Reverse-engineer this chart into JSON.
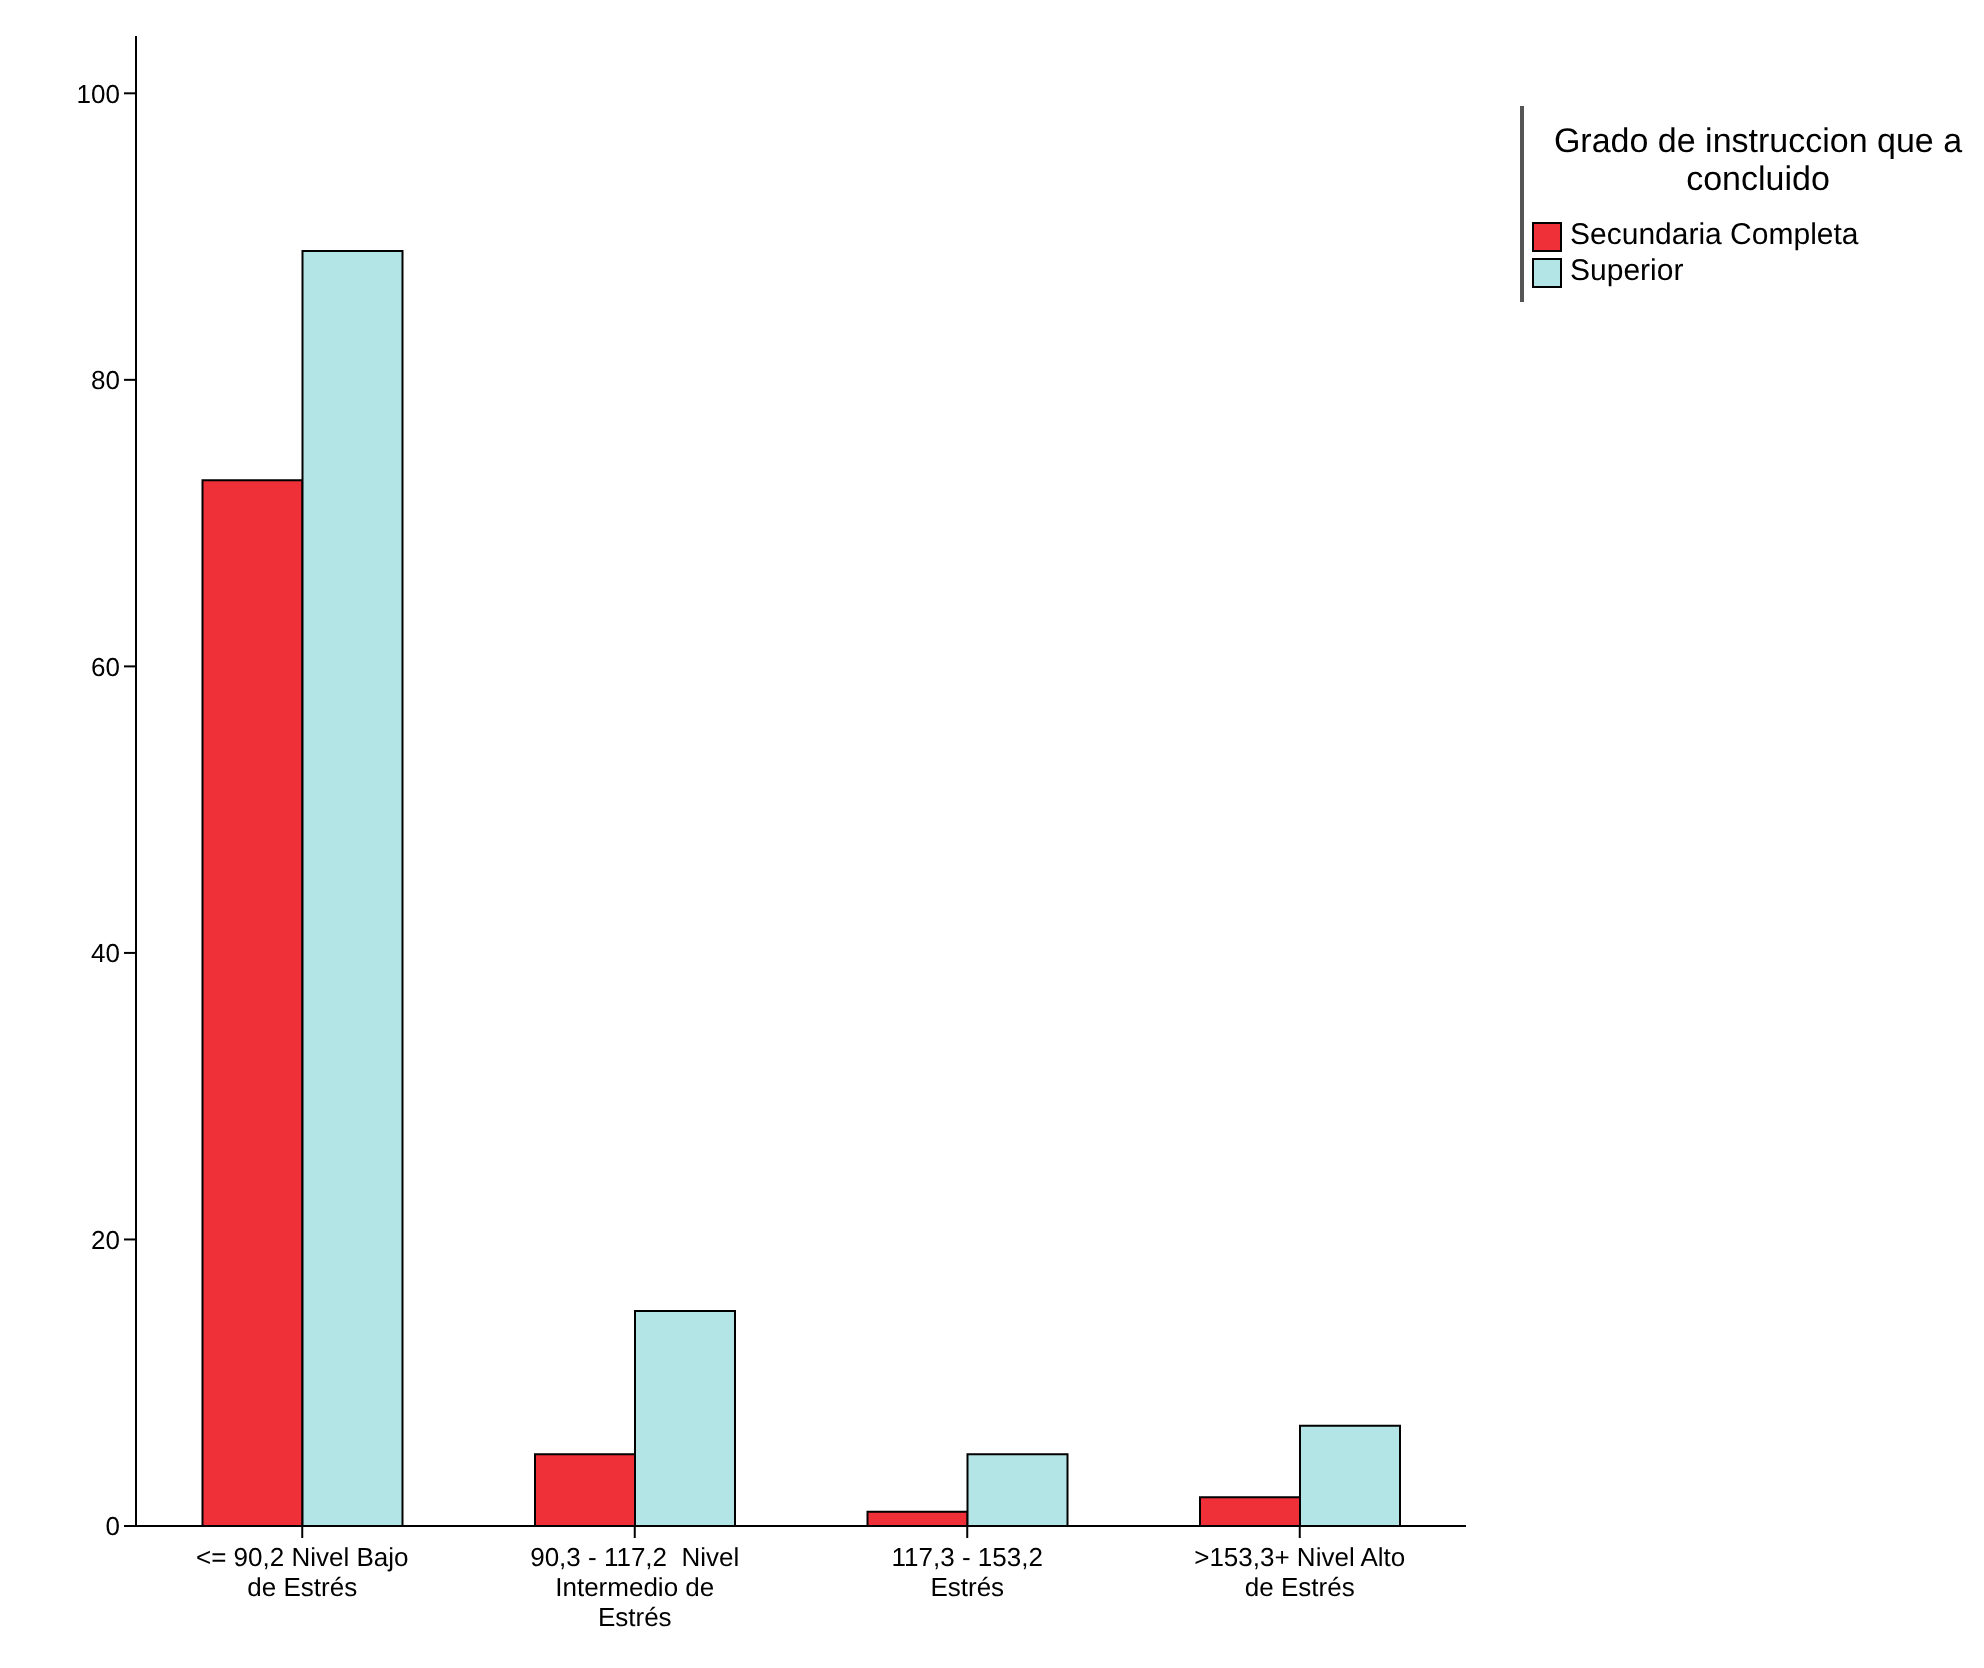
{
  "chart_data": {
    "type": "bar",
    "categories": [
      "<= 90,2 Nivel Bajo de Estrés",
      "90,3 - 117,2  Nivel Intermedio de Estrés",
      "117,3 - 153,2 Estrés",
      ">153,3+ Nivel Alto de Estrés"
    ],
    "series": [
      {
        "name": "Secundaria Completa",
        "color": "#ef3038",
        "values": [
          73,
          5,
          1,
          2
        ]
      },
      {
        "name": "Superior",
        "color": "#b3e4e6",
        "values": [
          89,
          15,
          5,
          7
        ]
      }
    ],
    "legend_title": "Grado de instruccion que a concluido",
    "legend": "top right",
    "ylim": [
      0,
      104
    ],
    "yticks": [
      0,
      20,
      40,
      60,
      80,
      100
    ],
    "grid": false
  }
}
